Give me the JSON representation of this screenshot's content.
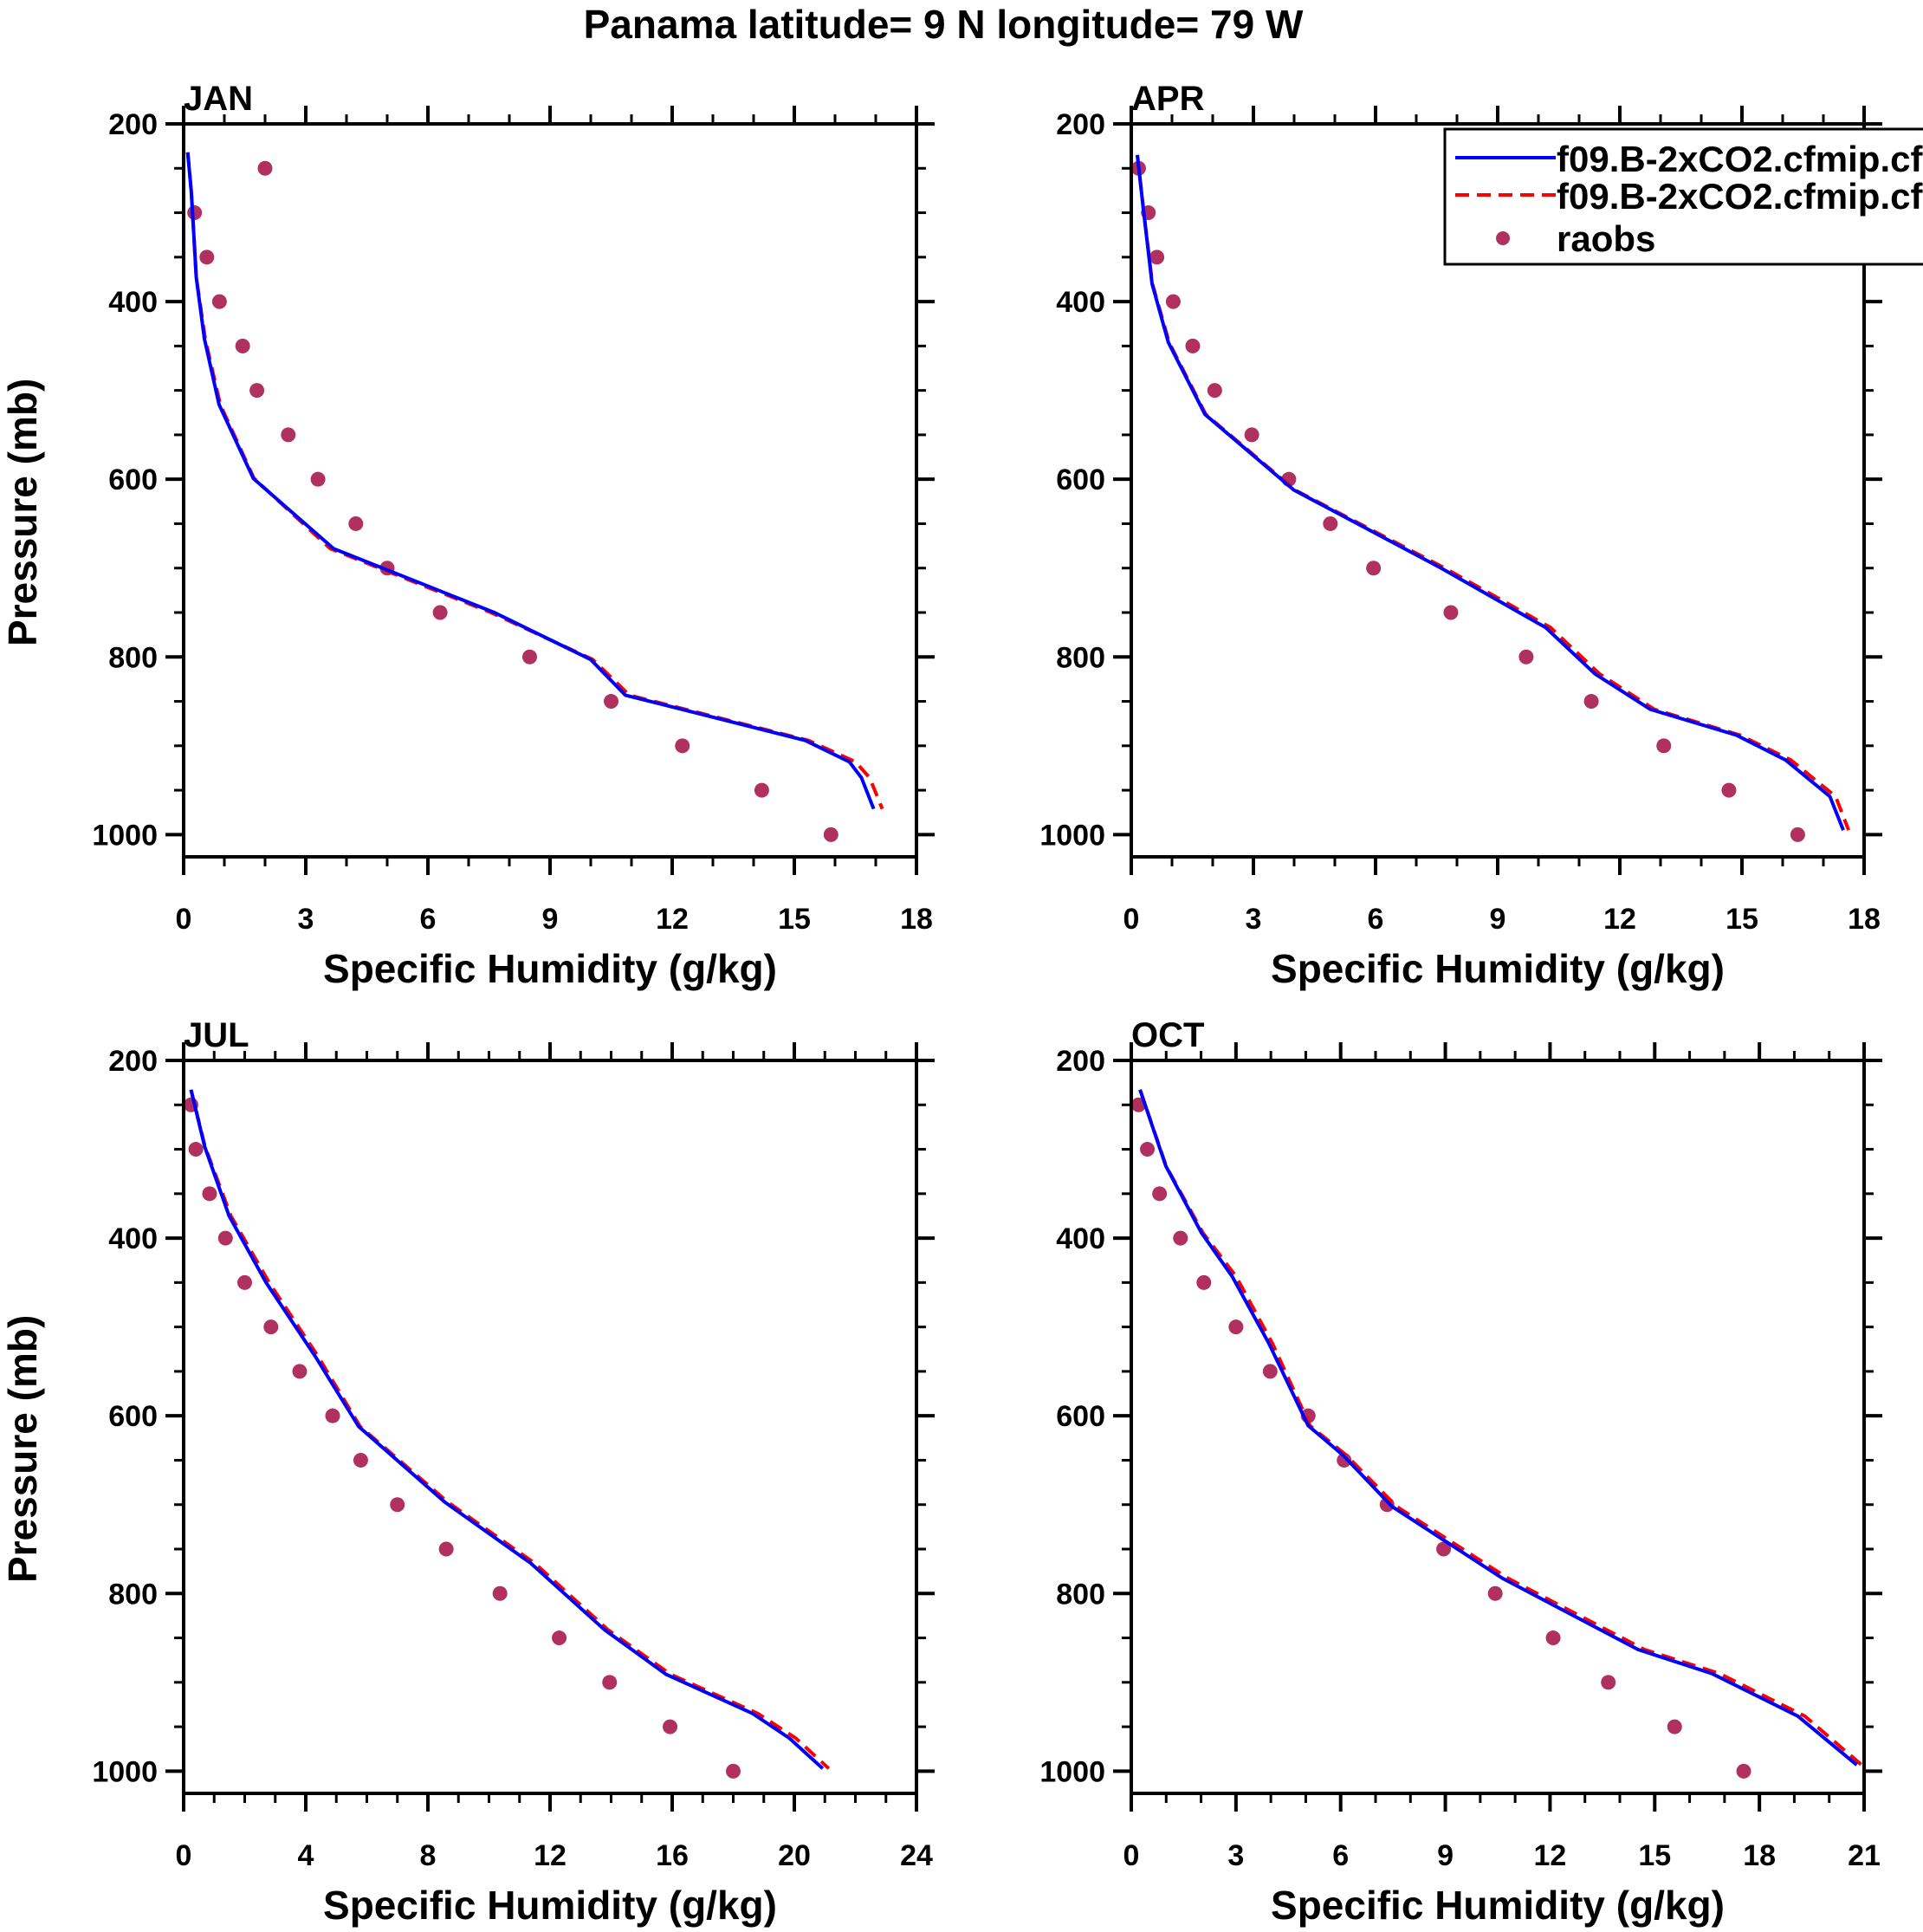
{
  "title": "Panama  latitude= 9 N longitude= 79 W",
  "y_label": "Pressure (mb)",
  "x_label": "Specific Humidity (g/kg)",
  "colors": {
    "model_a": "#0000ff",
    "model_b": "#ff0000",
    "raobs": "#b03060",
    "axis": "#000000"
  },
  "legend": {
    "placement": "top-right of APR panel",
    "entries": [
      {
        "label": "f09.B-2xCO2.cfmip.cf",
        "style": "solid",
        "color": "#0000ff"
      },
      {
        "label": "f09.B-2xCO2.cfmip.cf",
        "style": "dashed",
        "color": "#ff0000"
      },
      {
        "label": "raobs",
        "style": "marker",
        "color": "#b03060"
      }
    ]
  },
  "chart_data": [
    {
      "type": "line",
      "title": "JAN",
      "xlim": [
        0,
        18
      ],
      "xticks": [
        0,
        3,
        6,
        9,
        12,
        15,
        18
      ],
      "xminor": 1,
      "ylim": [
        200,
        1025
      ],
      "yticks": [
        200,
        400,
        600,
        800,
        1000
      ],
      "yminor": 50,
      "y_reversed": true,
      "model_p": [
        232,
        277,
        373,
        442,
        516,
        599,
        678,
        750,
        803,
        843,
        894,
        918,
        936,
        971
      ],
      "series": [
        {
          "name": "f09.B-2xCO2.cfmip.cf (solid)",
          "q": [
            0.1,
            0.19,
            0.31,
            0.51,
            0.87,
            1.71,
            3.68,
            7.63,
            10.0,
            10.85,
            15.27,
            16.35,
            16.65,
            16.95
          ]
        },
        {
          "name": "f09.B-2xCO2.cfmip.cf (dashed)",
          "q": [
            0.1,
            0.19,
            0.31,
            0.53,
            0.9,
            1.73,
            3.6,
            7.55,
            10.05,
            10.95,
            15.35,
            16.5,
            16.85,
            17.16
          ]
        }
      ],
      "raobs": {
        "p": [
          250,
          300,
          350,
          400,
          450,
          500,
          550,
          600,
          650,
          700,
          750,
          800,
          850,
          900,
          950,
          1000
        ],
        "q": [
          2.0,
          0.27,
          0.57,
          0.88,
          1.45,
          1.8,
          2.57,
          3.3,
          4.23,
          5.0,
          6.3,
          8.5,
          10.5,
          12.25,
          14.2,
          15.9
        ]
      }
    },
    {
      "type": "line",
      "title": "APR",
      "xlim": [
        0,
        18
      ],
      "xticks": [
        0,
        3,
        6,
        9,
        12,
        15,
        18
      ],
      "xminor": 1,
      "ylim": [
        200,
        1025
      ],
      "yticks": [
        200,
        400,
        600,
        800,
        1000
      ],
      "yminor": 50,
      "y_reversed": true,
      "model_p": [
        235,
        297,
        380,
        446,
        527,
        612,
        700,
        767,
        819,
        859,
        888,
        916,
        957,
        995
      ],
      "series": [
        {
          "name": "f09.B-2xCO2.cfmip.cf (solid)",
          "q": [
            0.15,
            0.3,
            0.51,
            0.91,
            1.81,
            3.99,
            7.61,
            10.18,
            11.39,
            12.75,
            14.86,
            16.07,
            17.16,
            17.49
          ]
        },
        {
          "name": "f09.B-2xCO2.cfmip.cf (dashed)",
          "q": [
            0.15,
            0.3,
            0.52,
            0.93,
            1.83,
            4.02,
            7.7,
            10.3,
            11.5,
            12.85,
            14.95,
            16.2,
            17.3,
            17.62
          ]
        }
      ],
      "raobs": {
        "p": [
          250,
          300,
          350,
          400,
          450,
          500,
          550,
          600,
          650,
          700,
          750,
          800,
          850,
          900,
          950,
          1000
        ],
        "q": [
          0.18,
          0.42,
          0.63,
          1.03,
          1.51,
          2.05,
          2.96,
          3.87,
          4.89,
          5.95,
          7.85,
          9.7,
          11.3,
          13.08,
          14.68,
          16.37
        ]
      }
    },
    {
      "type": "line",
      "title": "JUL",
      "xlim": [
        0,
        24
      ],
      "xticks": [
        0,
        4,
        8,
        12,
        16,
        20,
        24
      ],
      "xminor": 1,
      "ylim": [
        200,
        1025
      ],
      "yticks": [
        200,
        400,
        600,
        800,
        1000
      ],
      "yminor": 50,
      "y_reversed": true,
      "model_p": [
        233,
        297,
        375,
        450,
        533,
        612,
        697,
        766,
        841,
        891,
        935,
        963,
        997
      ],
      "series": [
        {
          "name": "f09.B-2xCO2.cfmip.cf (solid)",
          "q": [
            0.24,
            0.69,
            1.49,
            2.7,
            4.31,
            5.73,
            8.55,
            11.37,
            13.79,
            15.8,
            18.63,
            19.84,
            20.93
          ]
        },
        {
          "name": "f09.B-2xCO2.cfmip.cf (dashed)",
          "q": [
            0.24,
            0.7,
            1.55,
            2.8,
            4.4,
            5.78,
            8.65,
            11.5,
            13.9,
            15.95,
            18.8,
            20.05,
            21.13
          ]
        }
      ],
      "raobs": {
        "p": [
          250,
          300,
          350,
          400,
          450,
          500,
          550,
          600,
          650,
          700,
          750,
          800,
          850,
          900,
          950,
          1000
        ],
        "q": [
          0.24,
          0.4,
          0.85,
          1.37,
          2.0,
          2.86,
          3.8,
          4.88,
          5.8,
          7.0,
          8.6,
          10.36,
          12.3,
          13.95,
          15.93,
          18.0
        ]
      }
    },
    {
      "type": "line",
      "title": "OCT",
      "xlim": [
        0,
        21
      ],
      "xticks": [
        0,
        3,
        6,
        9,
        12,
        15,
        18,
        21
      ],
      "xminor": 1,
      "ylim": [
        200,
        1025
      ],
      "yticks": [
        200,
        400,
        600,
        800,
        1000
      ],
      "yminor": 50,
      "y_reversed": true,
      "model_p": [
        233,
        319,
        394,
        443,
        519,
        611,
        644,
        702,
        783,
        863,
        890,
        938,
        993
      ],
      "series": [
        {
          "name": "f09.B-2xCO2.cfmip.cf (solid)",
          "q": [
            0.25,
            0.99,
            2.01,
            2.89,
            3.95,
            5.07,
            6.06,
            7.47,
            10.64,
            14.52,
            16.63,
            19.1,
            20.79
          ]
        },
        {
          "name": "f09.B-2xCO2.cfmip.cf (dashed)",
          "q": [
            0.25,
            1.0,
            2.05,
            3.0,
            4.05,
            5.12,
            6.15,
            7.6,
            10.8,
            14.7,
            16.85,
            19.3,
            20.93
          ]
        }
      ],
      "raobs": {
        "p": [
          250,
          300,
          350,
          400,
          450,
          500,
          550,
          600,
          650,
          700,
          750,
          800,
          850,
          900,
          950,
          1000
        ],
        "q": [
          0.21,
          0.46,
          0.81,
          1.41,
          2.08,
          3.0,
          3.98,
          5.07,
          6.1,
          7.33,
          8.95,
          10.43,
          12.09,
          13.67,
          15.57,
          17.55
        ]
      }
    }
  ]
}
